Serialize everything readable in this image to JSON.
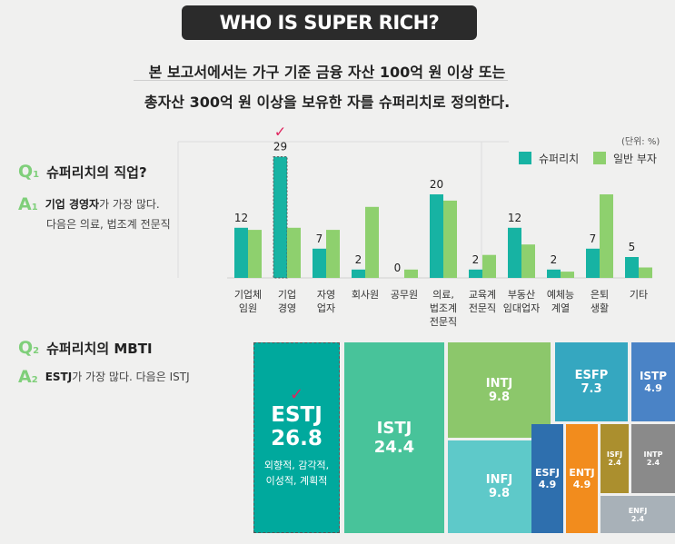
{
  "title": "WHO IS SUPER RICH?",
  "intro": {
    "line1": "본 보고서에서는 가구 기준 금융 자산 100억 원 이상 또는",
    "line2": "총자산 300억 원 이상을 보유한 자를 슈퍼리치로 정의한다."
  },
  "q1": {
    "label": "Q",
    "num": "1",
    "question": "슈퍼리치의 직업?",
    "a_label": "A",
    "a_num": "1",
    "answer_bold": "기업 경영자",
    "answer_rest": "가 가장 많다.",
    "answer_line2": "다음은 의료, 법조계 전문직"
  },
  "q2": {
    "label": "Q",
    "num": "2",
    "question": "슈퍼리치의 MBTI",
    "a_label": "A",
    "a_num": "2",
    "answer_bold": "ESTJ",
    "answer_rest": "가 가장 많다. 다음은 ISTJ"
  },
  "colors": {
    "super_rich": "#17b3a3",
    "general_rich": "#8ed06e",
    "highlight": "#e0245e",
    "accent_green": "#7fcf7a"
  },
  "chart_data": [
    {
      "type": "bar",
      "unit": "(단위: %)",
      "categories": [
        [
          "기업체",
          "임원"
        ],
        [
          "기업",
          "경영"
        ],
        [
          "자영",
          "업자"
        ],
        [
          "회사원"
        ],
        [
          "공무원"
        ],
        [
          "의료,",
          "법조계",
          "전문직"
        ],
        [
          "교육계",
          "전문직"
        ],
        [
          "부동산",
          "임대업자"
        ],
        [
          "예체능",
          "계열"
        ],
        [
          "은퇴",
          "생활"
        ],
        [
          "기타"
        ]
      ],
      "series": [
        {
          "name": "슈퍼리치",
          "values": [
            12,
            29,
            7,
            2,
            0,
            20,
            2,
            12,
            2,
            7,
            5
          ],
          "labels": [
            "12",
            "29",
            "7",
            "2",
            "0",
            "20",
            "2",
            "12",
            "2",
            "7",
            "5"
          ]
        },
        {
          "name": "일반 부자",
          "values": [
            11.5,
            12,
            11.5,
            17,
            2,
            18.5,
            5.5,
            8,
            1.5,
            20,
            2.5
          ]
        }
      ],
      "highlight_category_index": 1,
      "check": "✓"
    },
    {
      "type": "treemap",
      "items": [
        {
          "name": "ESTJ",
          "value": "26.8",
          "desc1": "외향적, 감각적,",
          "desc2": "이성적, 계획적",
          "color": "#00a99d",
          "check": "✓"
        },
        {
          "name": "ISTJ",
          "value": "24.4",
          "color": "#48c39a"
        },
        {
          "name": "INTJ",
          "value": "9.8",
          "color": "#8cc76b"
        },
        {
          "name": "INFJ",
          "value": "9.8",
          "color": "#5ec9c9"
        },
        {
          "name": "ESFP",
          "value": "7.3",
          "color": "#35a7c0"
        },
        {
          "name": "ISTP",
          "value": "4.9",
          "color": "#4a83c6"
        },
        {
          "name": "ESFJ",
          "value": "4.9",
          "color": "#2e6fae"
        },
        {
          "name": "ENTJ",
          "value": "4.9",
          "color": "#f28c1d"
        },
        {
          "name": "ISFJ",
          "value": "2.4",
          "color": "#ab8f2e"
        },
        {
          "name": "INTP",
          "value": "2.4",
          "color": "#8a8a8a"
        },
        {
          "name": "ENFJ",
          "value": "2.4",
          "color": "#a8b1b8"
        }
      ]
    }
  ]
}
